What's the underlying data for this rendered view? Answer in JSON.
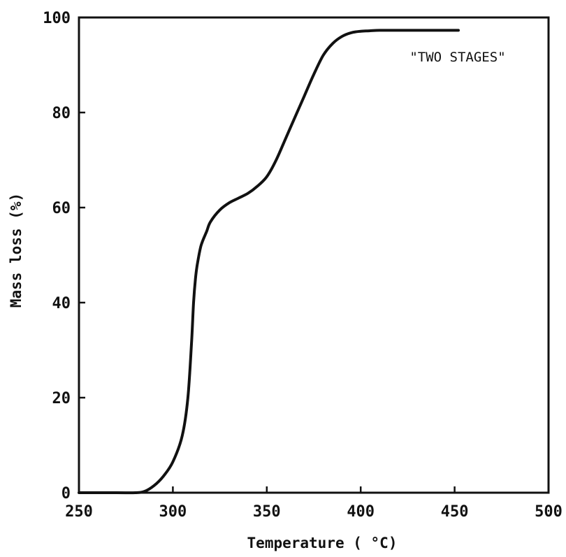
{
  "chart_data": {
    "type": "line",
    "title": "",
    "xlabel": "Temperature ( °C)",
    "ylabel": "Mass loss (%)",
    "xlim": [
      250,
      500
    ],
    "ylim": [
      0,
      100
    ],
    "x_ticks": [
      250,
      300,
      350,
      400,
      450,
      500
    ],
    "y_ticks": [
      0,
      20,
      40,
      60,
      80,
      100
    ],
    "grid": false,
    "annotation": "\"TWO STAGES\"",
    "colors": {
      "line": "#111111",
      "axes": "#111111",
      "background": "#ffffff"
    },
    "series": [
      {
        "x": [
          250,
          270,
          280,
          285,
          290,
          295,
          300,
          305,
          308,
          310,
          311,
          312,
          313,
          315,
          318,
          320,
          325,
          330,
          335,
          340,
          345,
          350,
          355,
          360,
          365,
          370,
          375,
          380,
          385,
          390,
          395,
          400,
          405,
          410,
          420,
          430,
          440,
          450,
          452
        ],
        "y": [
          0,
          0,
          0,
          0.3,
          1.5,
          3.5,
          6.5,
          12,
          20,
          32,
          40,
          45,
          48,
          52,
          55,
          57,
          59.5,
          61,
          62,
          63,
          64.5,
          66.5,
          70,
          74.5,
          79,
          83.5,
          88,
          92,
          94.5,
          96,
          96.8,
          97.1,
          97.2,
          97.3,
          97.3,
          97.3,
          97.3,
          97.3,
          97.3
        ]
      }
    ]
  }
}
